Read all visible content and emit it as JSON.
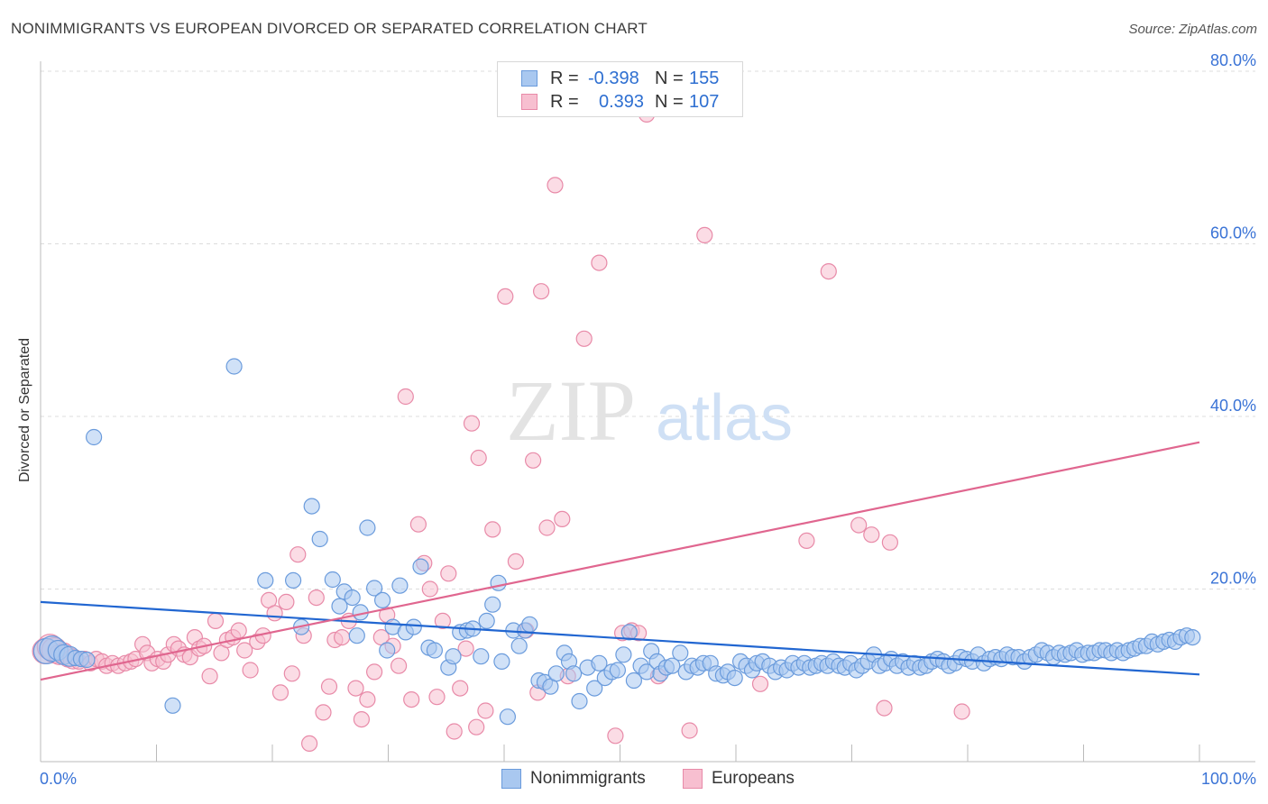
{
  "header": {
    "title": "NONIMMIGRANTS VS EUROPEAN DIVORCED OR SEPARATED CORRELATION CHART",
    "source": "Source: ZipAtlas.com"
  },
  "watermark": {
    "zip": "ZIP",
    "atlas": "atlas"
  },
  "legend_top": [
    {
      "r_label": "R =",
      "r_value": "-0.398",
      "n_label": "N =",
      "n_value": "155"
    },
    {
      "r_label": "R =",
      "r_value": "0.393",
      "n_label": "N =",
      "n_value": "107"
    }
  ],
  "legend_bottom": {
    "series1": "Nonimmigrants",
    "series2": "Europeans"
  },
  "colors": {
    "blue_fill": "#a9c8f0",
    "blue_stroke": "#6a9bdc",
    "blue_line": "#2166d1",
    "pink_fill": "#f7bfd0",
    "pink_stroke": "#e88aa8",
    "pink_line": "#e0668f",
    "tick_label": "#3a73d6",
    "grid": "#dcdcdc"
  },
  "chart_data": {
    "type": "scatter",
    "title": "NONIMMIGRANTS VS EUROPEAN DIVORCED OR SEPARATED CORRELATION CHART",
    "xlabel": "",
    "ylabel": "Divorced or Separated",
    "xlim": [
      0,
      100
    ],
    "ylim": [
      0,
      80
    ],
    "x_tick_labels": [
      "0.0%",
      "100.0%"
    ],
    "y_ticks": [
      20,
      40,
      60,
      80
    ],
    "y_tick_labels": [
      "20.0%",
      "40.0%",
      "60.0%",
      "80.0%"
    ],
    "grid": true,
    "legend_position": "top-center",
    "series": [
      {
        "name": "Nonimmigrants",
        "r": -0.398,
        "n": 155,
        "trend": {
          "x": [
            0,
            100
          ],
          "y": [
            18.5,
            10.1
          ]
        },
        "points": [
          [
            0.5,
            12.8
          ],
          [
            1,
            13.1
          ],
          [
            1.5,
            12.9
          ],
          [
            2,
            12.4
          ],
          [
            2.5,
            12.2
          ],
          [
            3,
            12.0
          ],
          [
            3.5,
            11.9
          ],
          [
            4,
            11.8
          ],
          [
            4.6,
            37.6
          ],
          [
            11.4,
            6.5
          ],
          [
            16.7,
            45.8
          ],
          [
            19.4,
            21.0
          ],
          [
            21.8,
            21.0
          ],
          [
            22.5,
            15.6
          ],
          [
            23.4,
            29.6
          ],
          [
            24.1,
            25.8
          ],
          [
            25.2,
            21.1
          ],
          [
            25.8,
            18.0
          ],
          [
            26.2,
            19.7
          ],
          [
            26.9,
            19.0
          ],
          [
            27.6,
            17.3
          ],
          [
            27.3,
            14.6
          ],
          [
            28.2,
            27.1
          ],
          [
            28.8,
            20.1
          ],
          [
            29.5,
            18.7
          ],
          [
            29.9,
            12.9
          ],
          [
            30.4,
            15.6
          ],
          [
            31.0,
            20.4
          ],
          [
            31.5,
            15.0
          ],
          [
            32.2,
            15.6
          ],
          [
            32.8,
            22.6
          ],
          [
            33.5,
            13.2
          ],
          [
            34.0,
            12.9
          ],
          [
            35.2,
            10.9
          ],
          [
            35.6,
            12.2
          ],
          [
            36.2,
            15.0
          ],
          [
            36.8,
            15.2
          ],
          [
            37.3,
            15.4
          ],
          [
            38.0,
            12.2
          ],
          [
            38.5,
            16.3
          ],
          [
            39.0,
            18.2
          ],
          [
            39.5,
            20.7
          ],
          [
            39.8,
            11.6
          ],
          [
            40.3,
            5.2
          ],
          [
            40.8,
            15.2
          ],
          [
            41.3,
            13.4
          ],
          [
            41.8,
            15.2
          ],
          [
            42.2,
            15.9
          ],
          [
            43.0,
            9.4
          ],
          [
            43.5,
            9.2
          ],
          [
            44.0,
            8.7
          ],
          [
            44.5,
            10.2
          ],
          [
            45.2,
            12.6
          ],
          [
            45.6,
            11.6
          ],
          [
            46.0,
            10.2
          ],
          [
            46.5,
            7.0
          ],
          [
            47.2,
            10.9
          ],
          [
            47.8,
            8.5
          ],
          [
            48.2,
            11.4
          ],
          [
            48.7,
            9.7
          ],
          [
            49.3,
            10.4
          ],
          [
            49.8,
            10.6
          ],
          [
            50.3,
            12.4
          ],
          [
            50.8,
            15.0
          ],
          [
            51.2,
            9.4
          ],
          [
            51.8,
            11.1
          ],
          [
            52.3,
            10.4
          ],
          [
            52.7,
            12.8
          ],
          [
            53.2,
            11.6
          ],
          [
            53.5,
            10.2
          ],
          [
            54.0,
            10.9
          ],
          [
            54.5,
            11.1
          ],
          [
            55.2,
            12.6
          ],
          [
            55.7,
            10.4
          ],
          [
            56.2,
            11.1
          ],
          [
            56.7,
            10.9
          ],
          [
            57.2,
            11.4
          ],
          [
            57.8,
            11.4
          ],
          [
            58.3,
            10.2
          ],
          [
            58.9,
            10.0
          ],
          [
            59.3,
            10.4
          ],
          [
            59.9,
            9.7
          ],
          [
            60.4,
            11.6
          ],
          [
            60.9,
            11.1
          ],
          [
            61.4,
            10.6
          ],
          [
            61.8,
            11.4
          ],
          [
            62.3,
            11.6
          ],
          [
            62.9,
            11.1
          ],
          [
            63.4,
            10.4
          ],
          [
            63.9,
            10.9
          ],
          [
            64.4,
            10.6
          ],
          [
            64.9,
            11.4
          ],
          [
            65.4,
            10.9
          ],
          [
            65.9,
            11.4
          ],
          [
            66.4,
            10.9
          ],
          [
            66.9,
            11.1
          ],
          [
            67.4,
            11.4
          ],
          [
            67.9,
            11.1
          ],
          [
            68.4,
            11.6
          ],
          [
            68.9,
            11.1
          ],
          [
            69.4,
            10.9
          ],
          [
            69.9,
            11.4
          ],
          [
            70.4,
            10.6
          ],
          [
            70.9,
            11.1
          ],
          [
            71.4,
            11.6
          ],
          [
            71.9,
            12.4
          ],
          [
            72.4,
            11.1
          ],
          [
            72.9,
            11.4
          ],
          [
            73.4,
            11.9
          ],
          [
            73.9,
            11.1
          ],
          [
            74.4,
            11.6
          ],
          [
            74.9,
            10.9
          ],
          [
            75.4,
            11.4
          ],
          [
            75.9,
            10.9
          ],
          [
            76.4,
            11.1
          ],
          [
            76.9,
            11.6
          ],
          [
            77.4,
            11.9
          ],
          [
            77.9,
            11.6
          ],
          [
            78.4,
            11.1
          ],
          [
            78.9,
            11.4
          ],
          [
            79.4,
            12.1
          ],
          [
            79.9,
            11.9
          ],
          [
            80.4,
            11.6
          ],
          [
            80.9,
            12.4
          ],
          [
            81.4,
            11.4
          ],
          [
            81.9,
            11.9
          ],
          [
            82.4,
            12.1
          ],
          [
            82.9,
            11.9
          ],
          [
            83.4,
            12.4
          ],
          [
            83.9,
            12.1
          ],
          [
            84.4,
            12.1
          ],
          [
            84.9,
            11.6
          ],
          [
            85.4,
            12.1
          ],
          [
            85.9,
            12.4
          ],
          [
            86.4,
            12.9
          ],
          [
            86.9,
            12.6
          ],
          [
            87.4,
            12.1
          ],
          [
            87.9,
            12.6
          ],
          [
            88.4,
            12.4
          ],
          [
            88.9,
            12.6
          ],
          [
            89.4,
            12.9
          ],
          [
            89.9,
            12.4
          ],
          [
            90.4,
            12.6
          ],
          [
            90.9,
            12.6
          ],
          [
            91.4,
            12.9
          ],
          [
            91.9,
            12.9
          ],
          [
            92.4,
            12.6
          ],
          [
            92.9,
            12.9
          ],
          [
            93.4,
            12.6
          ],
          [
            93.9,
            12.9
          ],
          [
            94.4,
            13.1
          ],
          [
            94.9,
            13.4
          ],
          [
            95.4,
            13.4
          ],
          [
            95.9,
            13.9
          ],
          [
            96.4,
            13.6
          ],
          [
            96.9,
            13.9
          ],
          [
            97.4,
            14.1
          ],
          [
            97.9,
            13.9
          ],
          [
            98.4,
            14.4
          ],
          [
            98.9,
            14.6
          ],
          [
            99.4,
            14.4
          ]
        ]
      },
      {
        "name": "Europeans",
        "r": 0.393,
        "n": 107,
        "trend": {
          "x": [
            0,
            100
          ],
          "y": [
            9.5,
            37.0
          ]
        },
        "points": [
          [
            0.4,
            12.8
          ],
          [
            0.8,
            13.3
          ],
          [
            1.2,
            12.9
          ],
          [
            1.6,
            12.4
          ],
          [
            2.0,
            12.6
          ],
          [
            2.4,
            12.1
          ],
          [
            2.8,
            11.9
          ],
          [
            3.3,
            11.6
          ],
          [
            3.8,
            11.9
          ],
          [
            4.3,
            11.4
          ],
          [
            4.8,
            11.9
          ],
          [
            5.3,
            11.6
          ],
          [
            5.7,
            11.1
          ],
          [
            6.2,
            11.4
          ],
          [
            6.7,
            11.1
          ],
          [
            7.3,
            11.4
          ],
          [
            7.8,
            11.6
          ],
          [
            8.2,
            11.9
          ],
          [
            8.8,
            13.6
          ],
          [
            9.2,
            12.6
          ],
          [
            9.6,
            11.4
          ],
          [
            10.1,
            11.9
          ],
          [
            10.6,
            11.6
          ],
          [
            11.0,
            12.4
          ],
          [
            11.5,
            13.6
          ],
          [
            11.9,
            13.1
          ],
          [
            12.4,
            12.4
          ],
          [
            12.9,
            12.1
          ],
          [
            13.3,
            14.4
          ],
          [
            13.7,
            13.1
          ],
          [
            14.1,
            13.4
          ],
          [
            14.6,
            9.9
          ],
          [
            15.1,
            16.3
          ],
          [
            15.6,
            12.6
          ],
          [
            16.1,
            14.1
          ],
          [
            16.6,
            14.4
          ],
          [
            17.1,
            15.2
          ],
          [
            17.6,
            12.9
          ],
          [
            18.1,
            10.6
          ],
          [
            18.7,
            13.9
          ],
          [
            19.2,
            14.6
          ],
          [
            19.7,
            18.7
          ],
          [
            20.2,
            17.2
          ],
          [
            20.7,
            8.0
          ],
          [
            21.2,
            18.5
          ],
          [
            21.7,
            10.2
          ],
          [
            22.2,
            24.0
          ],
          [
            22.7,
            14.6
          ],
          [
            23.2,
            2.1
          ],
          [
            23.8,
            19.0
          ],
          [
            24.4,
            5.7
          ],
          [
            24.9,
            8.7
          ],
          [
            25.4,
            14.1
          ],
          [
            26.0,
            14.4
          ],
          [
            26.6,
            16.3
          ],
          [
            27.2,
            8.5
          ],
          [
            27.7,
            4.9
          ],
          [
            28.2,
            7.2
          ],
          [
            28.8,
            10.4
          ],
          [
            29.4,
            14.4
          ],
          [
            29.9,
            17.0
          ],
          [
            30.4,
            13.4
          ],
          [
            30.9,
            11.1
          ],
          [
            31.5,
            42.3
          ],
          [
            32.0,
            7.2
          ],
          [
            32.6,
            27.5
          ],
          [
            33.1,
            23.0
          ],
          [
            33.6,
            20.0
          ],
          [
            34.2,
            7.5
          ],
          [
            34.7,
            16.3
          ],
          [
            35.2,
            21.8
          ],
          [
            35.7,
            3.5
          ],
          [
            36.2,
            8.5
          ],
          [
            36.7,
            13.1
          ],
          [
            37.2,
            39.2
          ],
          [
            37.6,
            4.0
          ],
          [
            37.8,
            35.2
          ],
          [
            38.4,
            5.9
          ],
          [
            39.0,
            26.9
          ],
          [
            40.1,
            53.9
          ],
          [
            41.0,
            23.2
          ],
          [
            41.9,
            15.2
          ],
          [
            42.5,
            34.9
          ],
          [
            42.9,
            8.0
          ],
          [
            43.2,
            54.5
          ],
          [
            43.7,
            27.1
          ],
          [
            44.4,
            66.8
          ],
          [
            45.0,
            28.1
          ],
          [
            45.5,
            9.9
          ],
          [
            46.9,
            49.0
          ],
          [
            48.2,
            57.8
          ],
          [
            49.6,
            3.0
          ],
          [
            50.2,
            14.9
          ],
          [
            51.0,
            15.2
          ],
          [
            51.6,
            14.9
          ],
          [
            52.3,
            75.0
          ],
          [
            53.3,
            9.9
          ],
          [
            56.0,
            3.6
          ],
          [
            57.3,
            61.0
          ],
          [
            62.1,
            9.0
          ],
          [
            66.1,
            25.6
          ],
          [
            68.0,
            56.8
          ],
          [
            70.6,
            27.4
          ],
          [
            71.7,
            26.3
          ],
          [
            72.8,
            6.2
          ],
          [
            73.3,
            25.4
          ],
          [
            79.5,
            5.8
          ]
        ]
      }
    ]
  }
}
